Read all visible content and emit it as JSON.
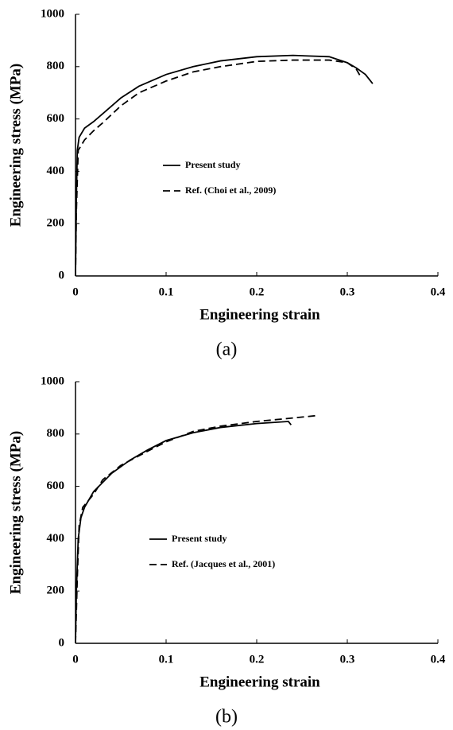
{
  "chart_data": [
    {
      "type": "line",
      "caption": "(a)",
      "x_label": "Engineering strain",
      "y_label": "Engineering stress (MPa)",
      "xlim": [
        0,
        0.4
      ],
      "xticks": [
        0,
        0.1,
        0.2,
        0.3,
        0.4
      ],
      "ylim": [
        0,
        1000
      ],
      "yticks": [
        0,
        200,
        400,
        600,
        800,
        1000
      ],
      "series": [
        {
          "name": "Present study",
          "color": "#000000",
          "style": "solid",
          "x": [
            0,
            0.001,
            0.002,
            0.004,
            0.01,
            0.02,
            0.03,
            0.05,
            0.07,
            0.1,
            0.13,
            0.16,
            0.2,
            0.24,
            0.28,
            0.3,
            0.31,
            0.32,
            0.328
          ],
          "values": [
            0,
            300,
            480,
            530,
            565,
            590,
            620,
            680,
            725,
            770,
            800,
            822,
            838,
            843,
            838,
            815,
            795,
            770,
            735
          ]
        },
        {
          "name": "Ref. (Choi et al., 2009)",
          "color": "#000000",
          "style": "dashed",
          "x": [
            0,
            0.001,
            0.003,
            0.01,
            0.02,
            0.03,
            0.05,
            0.07,
            0.1,
            0.13,
            0.16,
            0.2,
            0.24,
            0.28,
            0.3,
            0.31,
            0.315
          ],
          "values": [
            0,
            250,
            480,
            520,
            555,
            585,
            650,
            700,
            745,
            780,
            800,
            820,
            825,
            825,
            815,
            790,
            760
          ]
        }
      ]
    },
    {
      "type": "line",
      "caption": "(b)",
      "x_label": "Engineering strain",
      "y_label": "Engineering stress (MPa)",
      "xlim": [
        0,
        0.4
      ],
      "xticks": [
        0,
        0.1,
        0.2,
        0.3,
        0.4
      ],
      "ylim": [
        0,
        1000
      ],
      "yticks": [
        0,
        200,
        400,
        600,
        800,
        1000
      ],
      "series": [
        {
          "name": "Present study",
          "color": "#000000",
          "style": "solid",
          "x": [
            0,
            0.001,
            0.003,
            0.006,
            0.01,
            0.02,
            0.04,
            0.06,
            0.08,
            0.1,
            0.13,
            0.16,
            0.2,
            0.235,
            0.238
          ],
          "values": [
            0,
            200,
            400,
            480,
            520,
            580,
            650,
            700,
            740,
            775,
            805,
            825,
            840,
            848,
            835
          ]
        },
        {
          "name": "Ref. (Jacques et al., 2001)",
          "color": "#000000",
          "style": "dashed",
          "x": [
            0,
            0.002,
            0.004,
            0.008,
            0.02,
            0.03,
            0.05,
            0.08,
            0.1,
            0.13,
            0.16,
            0.2,
            0.23,
            0.265
          ],
          "values": [
            0,
            250,
            450,
            520,
            570,
            625,
            680,
            735,
            770,
            810,
            830,
            848,
            858,
            870
          ]
        }
      ]
    }
  ]
}
